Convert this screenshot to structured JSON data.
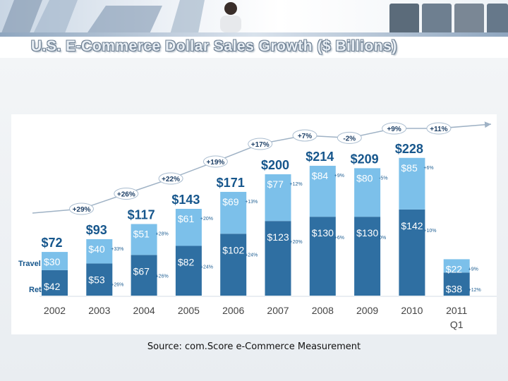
{
  "title": "U.S. E-Commerce Dollar Sales Growth ($ Billions)",
  "source": "Source: com.Score e-Commerce Measurement",
  "banner": {
    "photos": [
      "business-team-photo",
      "presenter-photo",
      "laptop-meeting-photo",
      "colleagues-photo",
      "businesswoman-photo"
    ]
  },
  "colors": {
    "retail": "#2f6fa2",
    "travel": "#7cc0ea",
    "label": "#16568c",
    "pct": "#1f5f93"
  },
  "chart_data": {
    "type": "bar",
    "stacked": true,
    "title": "U.S. E-Commerce Dollar Sales Growth ($ Billions)",
    "ylim": [
      0,
      240
    ],
    "categories": [
      "2002",
      "2003",
      "2004",
      "2005",
      "2006",
      "2007",
      "2008",
      "2009",
      "2010",
      "2011"
    ],
    "category_sub": [
      "",
      "",
      "",
      "",
      "",
      "",
      "",
      "",
      "",
      "Q1"
    ],
    "series": [
      {
        "name": "Retail",
        "values": [
          42,
          53,
          67,
          82,
          102,
          123,
          130,
          130,
          142,
          38
        ],
        "labels": [
          "$42",
          "$53",
          "$67",
          "$82",
          "$102",
          "$123",
          "$130",
          "$130",
          "$142",
          "$38"
        ],
        "growth": [
          "",
          "+26%",
          "+26%",
          "+24%",
          "+24%",
          "+20%",
          "+6%",
          "0%",
          "+10%",
          "+12%"
        ]
      },
      {
        "name": "Travel",
        "values": [
          30,
          40,
          51,
          61,
          69,
          77,
          84,
          80,
          85,
          22
        ],
        "labels": [
          "$30",
          "$40",
          "$51",
          "$61",
          "$69",
          "$77",
          "$84",
          "$80",
          "$85",
          "$22"
        ],
        "growth": [
          "",
          "+33%",
          "+28%",
          "+20%",
          "+13%",
          "+12%",
          "+9%",
          "-5%",
          "+6%",
          "+9%"
        ]
      }
    ],
    "totals": [
      72,
      93,
      117,
      143,
      171,
      200,
      214,
      209,
      228,
      null
    ],
    "total_labels": [
      "$72",
      "$93",
      "$117",
      "$143",
      "$171",
      "$200",
      "$214",
      "$209",
      "$228",
      ""
    ],
    "yoy_growth": [
      "+29%",
      "+26%",
      "+22%",
      "+19%",
      "+17%",
      "+7%",
      "-2%",
      "+9%",
      "+11%"
    ]
  }
}
